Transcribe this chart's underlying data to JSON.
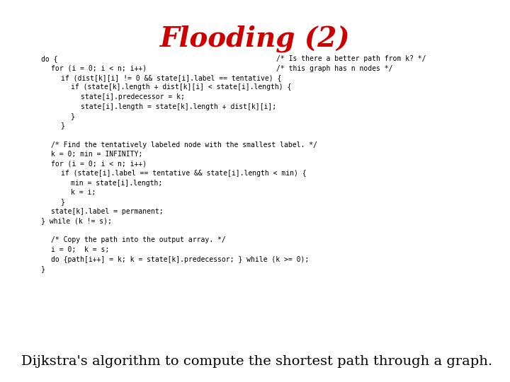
{
  "title": "Flooding (2)",
  "title_color": "#cc0000",
  "title_fontsize": 28,
  "title_font": "serif",
  "title_style": "italic",
  "background_color": "#ffffff",
  "code_lines": [
    {
      "text": "do {",
      "indent": 0,
      "comment": "/* Is there a better path from k? */"
    },
    {
      "text": "for (i = 0; i < n; i++)",
      "indent": 1,
      "comment": "/* this graph has n nodes */"
    },
    {
      "text": "if (dist[k][i] != 0 && state[i].label == tentative) {",
      "indent": 2,
      "comment": ""
    },
    {
      "text": "if (state[k].length + dist[k][i] < state[i].length) {",
      "indent": 3,
      "comment": ""
    },
    {
      "text": "state[i].predecessor = k;",
      "indent": 4,
      "comment": ""
    },
    {
      "text": "state[i].length = state[k].length + dist[k][i];",
      "indent": 4,
      "comment": ""
    },
    {
      "text": "}",
      "indent": 3,
      "comment": ""
    },
    {
      "text": "}",
      "indent": 2,
      "comment": ""
    },
    {
      "text": "",
      "indent": 0,
      "comment": ""
    },
    {
      "text": "/* Find the tentatively labeled node with the smallest label. */",
      "indent": 1,
      "comment": ""
    },
    {
      "text": "k = 0; min = INFINITY;",
      "indent": 1,
      "comment": ""
    },
    {
      "text": "for (i = 0; i < n; i++)",
      "indent": 1,
      "comment": ""
    },
    {
      "text": "if (state[i].label == tentative && state[i].length < min) {",
      "indent": 2,
      "comment": ""
    },
    {
      "text": "min = state[i].length;",
      "indent": 3,
      "comment": ""
    },
    {
      "text": "k = i;",
      "indent": 3,
      "comment": ""
    },
    {
      "text": "}",
      "indent": 2,
      "comment": ""
    },
    {
      "text": "state[k].label = permanent;",
      "indent": 1,
      "comment": ""
    },
    {
      "text": "} while (k != s);",
      "indent": 0,
      "comment": ""
    },
    {
      "text": "",
      "indent": 0,
      "comment": ""
    },
    {
      "text": "/* Copy the path into the output array. */",
      "indent": 1,
      "comment": ""
    },
    {
      "text": "i = 0;  k = s;",
      "indent": 1,
      "comment": ""
    },
    {
      "text": "do {path[i++] = k; k = state[k].predecessor; } while (k >= 0);",
      "indent": 1,
      "comment": ""
    },
    {
      "text": "}",
      "indent": 0,
      "comment": ""
    }
  ],
  "caption": "Dijkstra's algorithm to compute the shortest path through a graph.",
  "caption_fontsize": 14,
  "caption_font": "serif",
  "code_fontsize": 7.0,
  "code_font": "monospace",
  "code_color": "#000000",
  "figsize": [
    7.2,
    5.4
  ],
  "dpi": 100
}
